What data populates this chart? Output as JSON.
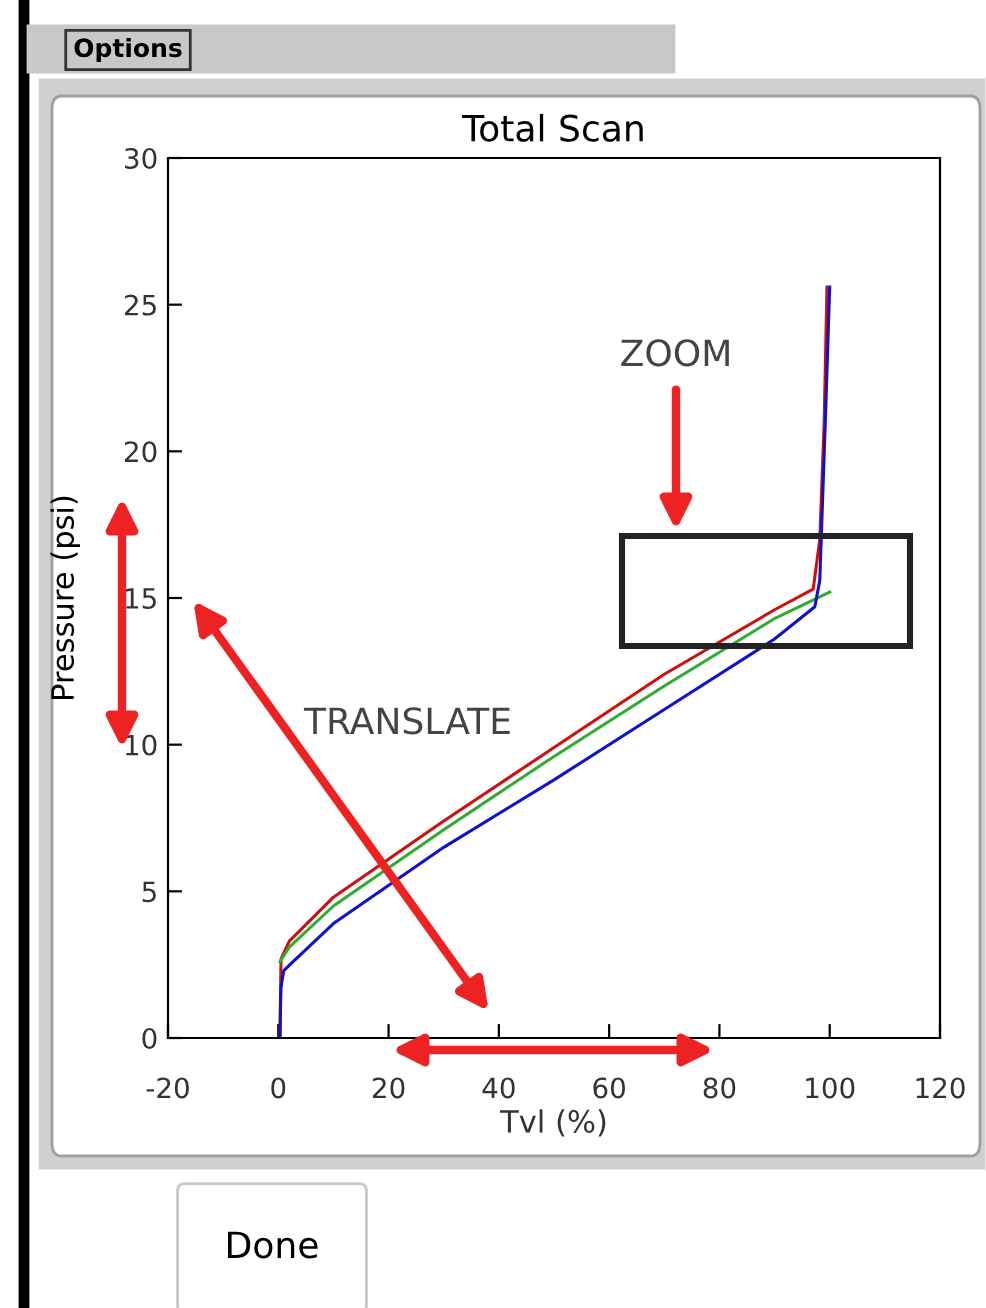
{
  "chart_data": {
    "type": "line",
    "title": "Total Scan",
    "xlabel": "Tvl (%)",
    "ylabel": "Pressure (psi)",
    "xlim": [
      -20,
      120
    ],
    "xticks": [
      -20,
      0,
      20,
      40,
      60,
      80,
      100,
      120
    ],
    "ylim": [
      0,
      30
    ],
    "yticks": [
      0,
      5,
      10,
      15,
      20,
      25,
      30
    ],
    "grid": false,
    "legend": false,
    "marker": "none",
    "line_style": "solid",
    "series": [
      {
        "color": "#cc1111",
        "x": [
          0.3,
          0.4,
          0.5,
          2.0,
          10,
          30,
          50,
          70,
          90,
          97.0,
          98.2,
          99.0,
          99.5
        ],
        "values": [
          0,
          1.5,
          2.7,
          3.3,
          4.8,
          7.4,
          9.9,
          12.4,
          14.6,
          15.3,
          17.0,
          21.0,
          25.6
        ]
      },
      {
        "color": "#33aa33",
        "x": [
          0.3,
          2.0,
          10,
          30,
          50,
          70,
          90,
          100
        ],
        "values": [
          2.6,
          3.1,
          4.5,
          7.1,
          9.6,
          12.0,
          14.3,
          15.2
        ]
      },
      {
        "color": "#1111cc",
        "x": [
          0.3,
          0.4,
          0.5,
          1.0,
          2.4,
          10,
          30,
          50,
          70,
          90,
          97.3,
          98.2,
          99.2,
          100
        ],
        "values": [
          0,
          1.0,
          1.75,
          2.3,
          2.55,
          3.9,
          6.5,
          8.8,
          11.2,
          13.6,
          14.7,
          15.6,
          21.0,
          25.6
        ]
      }
    ],
    "annotations": [
      "ZOOM",
      "TRANSLATE",
      "Options",
      "Done"
    ]
  }
}
